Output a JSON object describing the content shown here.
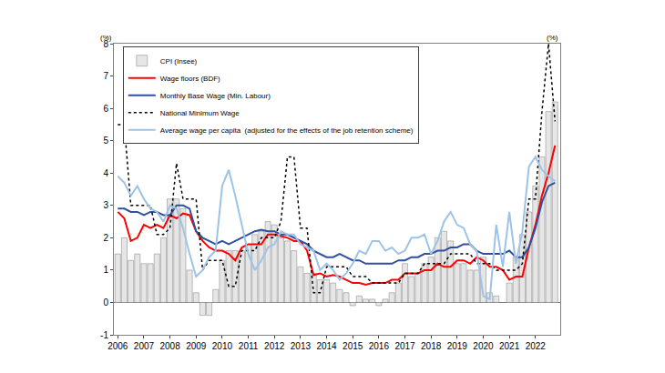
{
  "chart_data": {
    "type": "line",
    "annotations": [
      "(%)",
      "(%)"
    ],
    "x": [
      2006,
      2006.25,
      2006.5,
      2006.75,
      2007,
      2007.25,
      2007.5,
      2007.75,
      2008,
      2008.25,
      2008.5,
      2008.75,
      2009,
      2009.25,
      2009.5,
      2009.75,
      2010,
      2010.25,
      2010.5,
      2010.75,
      2011,
      2011.25,
      2011.5,
      2011.75,
      2012,
      2012.25,
      2012.5,
      2012.75,
      2013,
      2013.25,
      2013.5,
      2013.75,
      2014,
      2014.25,
      2014.5,
      2014.75,
      2015,
      2015.25,
      2015.5,
      2015.75,
      2016,
      2016.25,
      2016.5,
      2016.75,
      2017,
      2017.25,
      2017.5,
      2017.75,
      2018,
      2018.25,
      2018.5,
      2018.75,
      2019,
      2019.25,
      2019.5,
      2019.75,
      2020,
      2020.25,
      2020.5,
      2020.75,
      2021,
      2021.25,
      2021.5,
      2021.75,
      2022,
      2022.25,
      2022.5,
      2022.75
    ],
    "series": [
      {
        "name": "CPI (Insee)",
        "type": "bar",
        "color": "#e6e6e6",
        "values": [
          1.5,
          2.0,
          1.3,
          1.5,
          1.2,
          1.2,
          1.5,
          2.0,
          3.2,
          3.2,
          2.9,
          1.0,
          0.3,
          -0.4,
          -0.4,
          0.4,
          1.3,
          1.6,
          1.6,
          1.6,
          1.8,
          2.1,
          2.2,
          2.5,
          2.4,
          2.0,
          1.9,
          1.6,
          1.1,
          0.9,
          0.9,
          0.7,
          0.7,
          0.6,
          0.4,
          0.3,
          -0.1,
          0.2,
          0.1,
          0.1,
          -0.1,
          0.1,
          0.3,
          0.6,
          1.2,
          0.8,
          0.9,
          1.2,
          1.4,
          2.0,
          2.2,
          1.9,
          1.2,
          1.2,
          1.0,
          1.0,
          1.4,
          0.3,
          0.2,
          0.0,
          0.6,
          1.4,
          2.1,
          2.8,
          3.6,
          4.5,
          5.9,
          6.2
        ]
      },
      {
        "name": "Wage floors (BDF)",
        "type": "line",
        "color": "#ff0000",
        "line_style": "solid",
        "values": [
          2.8,
          2.6,
          1.9,
          2.0,
          2.4,
          2.3,
          2.4,
          2.3,
          2.7,
          2.6,
          2.75,
          2.7,
          2.2,
          1.9,
          1.7,
          1.6,
          1.6,
          1.5,
          1.3,
          1.7,
          1.8,
          1.8,
          1.8,
          2.1,
          2.1,
          2.05,
          2.0,
          1.9,
          1.9,
          1.6,
          0.85,
          0.9,
          0.8,
          0.85,
          0.8,
          0.7,
          0.6,
          0.6,
          0.55,
          0.6,
          0.6,
          0.6,
          0.7,
          0.7,
          0.9,
          0.9,
          0.9,
          1.0,
          1.0,
          1.2,
          1.1,
          1.1,
          1.3,
          1.3,
          1.2,
          1.4,
          1.3,
          1.1,
          1.1,
          1.0,
          0.7,
          0.8,
          0.8,
          1.7,
          2.4,
          3.3,
          4.0,
          4.85
        ]
      },
      {
        "name": "Monthly Base Wage (Min. Labour)",
        "type": "line",
        "color": "#2f4f9f",
        "line_style": "solid",
        "values": [
          2.9,
          2.9,
          2.8,
          2.8,
          2.7,
          2.8,
          2.8,
          2.7,
          2.7,
          3.0,
          3.0,
          2.9,
          2.2,
          2.0,
          1.9,
          1.8,
          1.9,
          1.8,
          1.9,
          2.0,
          2.1,
          2.2,
          2.25,
          2.2,
          2.2,
          2.1,
          2.1,
          2.0,
          1.9,
          1.8,
          1.6,
          1.5,
          1.4,
          1.4,
          1.5,
          1.4,
          1.3,
          1.3,
          1.2,
          1.2,
          1.2,
          1.2,
          1.2,
          1.3,
          1.3,
          1.4,
          1.4,
          1.5,
          1.5,
          1.6,
          1.6,
          1.7,
          1.7,
          1.8,
          1.8,
          1.6,
          1.5,
          1.5,
          1.5,
          1.5,
          1.6,
          1.4,
          1.4,
          1.7,
          2.3,
          3.1,
          3.6,
          3.7
        ]
      },
      {
        "name": "National Minimum Wage",
        "type": "line",
        "color": "#000000",
        "line_style": "dotted",
        "values": [
          5.5,
          5.5,
          3.0,
          3.0,
          3.0,
          3.0,
          2.1,
          2.1,
          2.3,
          4.3,
          3.2,
          3.2,
          3.2,
          1.0,
          1.3,
          1.3,
          1.3,
          0.5,
          0.5,
          1.6,
          1.6,
          1.6,
          2.0,
          2.0,
          2.0,
          2.5,
          4.5,
          4.5,
          2.3,
          2.3,
          0.3,
          0.3,
          1.1,
          1.1,
          1.1,
          1.1,
          0.8,
          0.8,
          0.8,
          0.6,
          0.6,
          0.6,
          0.6,
          0.6,
          0.9,
          0.9,
          0.9,
          1.2,
          1.2,
          1.2,
          1.2,
          1.5,
          1.5,
          1.5,
          1.5,
          1.2,
          1.2,
          1.2,
          1.0,
          1.0,
          1.0,
          1.0,
          1.2,
          3.2,
          3.2,
          5.9,
          8.0,
          5.6
        ]
      },
      {
        "name": "Average wage per capita  (adjusted for the effects of the job retention scheme)",
        "type": "line",
        "color": "#9dc3e6",
        "line_style": "solid",
        "values": [
          3.9,
          3.7,
          3.3,
          3.6,
          3.2,
          2.9,
          2.8,
          2.5,
          3.0,
          2.9,
          2.3,
          1.5,
          0.8,
          1.0,
          1.4,
          1.6,
          3.6,
          4.1,
          3.3,
          2.4,
          1.5,
          1.0,
          1.3,
          1.7,
          1.8,
          2.2,
          2.1,
          2.1,
          1.8,
          1.7,
          1.6,
          1.0,
          1.2,
          1.0,
          0.7,
          0.9,
          1.2,
          1.6,
          1.5,
          1.9,
          1.9,
          1.6,
          1.7,
          1.5,
          1.6,
          2.0,
          2.0,
          2.1,
          1.5,
          1.9,
          2.5,
          2.8,
          2.4,
          2.3,
          1.8,
          1.6,
          0.2,
          0.1,
          2.4,
          1.1,
          2.8,
          1.2,
          2.2,
          4.2,
          4.5,
          4.1,
          3.9,
          3.75
        ]
      }
    ],
    "xlim": [
      2005.85,
      2022.95
    ],
    "xticks": [
      2006,
      2007,
      2008,
      2009,
      2010,
      2011,
      2012,
      2013,
      2014,
      2015,
      2016,
      2017,
      2018,
      2019,
      2020,
      2021,
      2022
    ],
    "ylim": [
      -1,
      8
    ],
    "yticks": [
      -1,
      0,
      1,
      2,
      3,
      4,
      5,
      6,
      7,
      8
    ],
    "grid": false,
    "legend": "top-left"
  }
}
